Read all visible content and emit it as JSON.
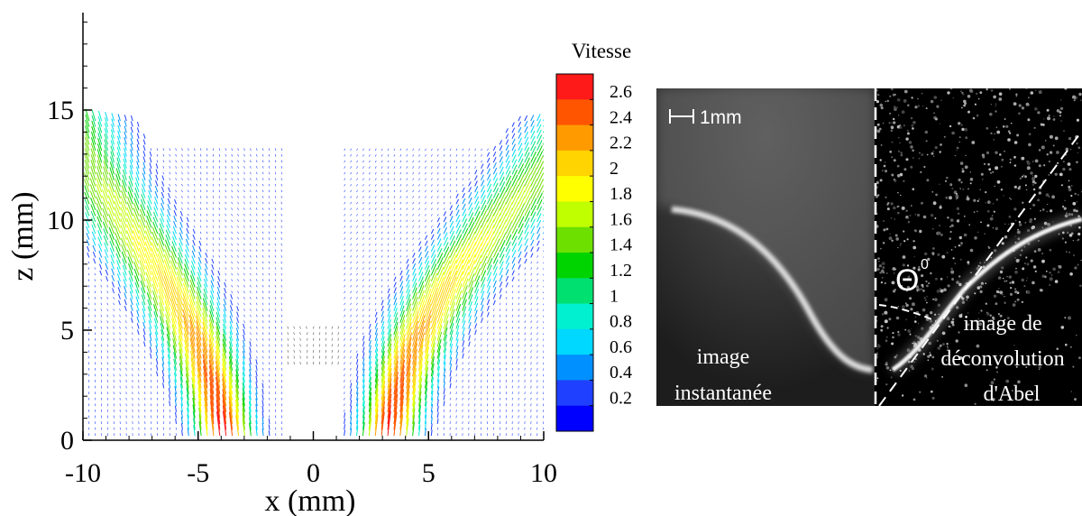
{
  "chart_data": [
    {
      "type": "vector_field",
      "xlabel": "x (mm)",
      "ylabel": "z (mm)",
      "xlim": [
        -10,
        10
      ],
      "ylim": [
        0,
        19
      ],
      "xticks": [
        "-10",
        "-5",
        "0",
        "5",
        "10"
      ],
      "yticks": [
        "0",
        "5",
        "10",
        "15"
      ],
      "x_major_ticks": [
        -10,
        -5,
        0,
        5,
        10
      ],
      "y_major_ticks": [
        0,
        5,
        10,
        15
      ],
      "colorbar": {
        "title": "Vitesse",
        "labels": [
          "2.6",
          "2.4",
          "2.2",
          "2",
          "1.8",
          "1.6",
          "1.4",
          "1.2",
          "1",
          "0.8",
          "0.6",
          "0.4",
          "0.2"
        ],
        "levels": [
          2.6,
          2.4,
          2.2,
          2.0,
          1.8,
          1.6,
          1.4,
          1.2,
          1.0,
          0.8,
          0.6,
          0.4,
          0.2
        ],
        "colors": [
          "#ff1a1a",
          "#ff5500",
          "#ff9a00",
          "#ffd400",
          "#ffff00",
          "#bfff00",
          "#6ee000",
          "#00d400",
          "#00e070",
          "#00f0d0",
          "#00d8ff",
          "#0090ff",
          "#2040ff",
          "#0000ff"
        ]
      },
      "sheets": [
        {
          "side": "right",
          "z": [
            0,
            1,
            2,
            3,
            4,
            5,
            6,
            7,
            8,
            9,
            10,
            11,
            12
          ],
          "x_center": [
            3.2,
            3.4,
            3.65,
            3.95,
            4.3,
            4.75,
            5.3,
            5.9,
            6.6,
            7.4,
            8.2,
            9.0,
            9.8
          ],
          "peak_speed": 2.7
        },
        {
          "side": "left",
          "z": [
            0,
            1,
            2,
            3,
            4,
            5,
            6,
            7,
            8,
            9,
            10,
            11,
            12,
            13
          ],
          "x_center": [
            -3.8,
            -4.0,
            -4.25,
            -4.55,
            -4.9,
            -5.3,
            -5.8,
            -6.35,
            -6.95,
            -7.6,
            -8.25,
            -8.9,
            -9.5,
            -10.0
          ],
          "peak_speed": 2.7
        }
      ],
      "background_color": "#1e3cff"
    },
    {
      "type": "image",
      "scale_label": "1mm",
      "angle_label": "Θ",
      "angle_superscript": "0",
      "left_label": [
        "image",
        "instantanée"
      ],
      "right_label": [
        "image de",
        "déconvolution",
        "d'Abel"
      ]
    }
  ]
}
